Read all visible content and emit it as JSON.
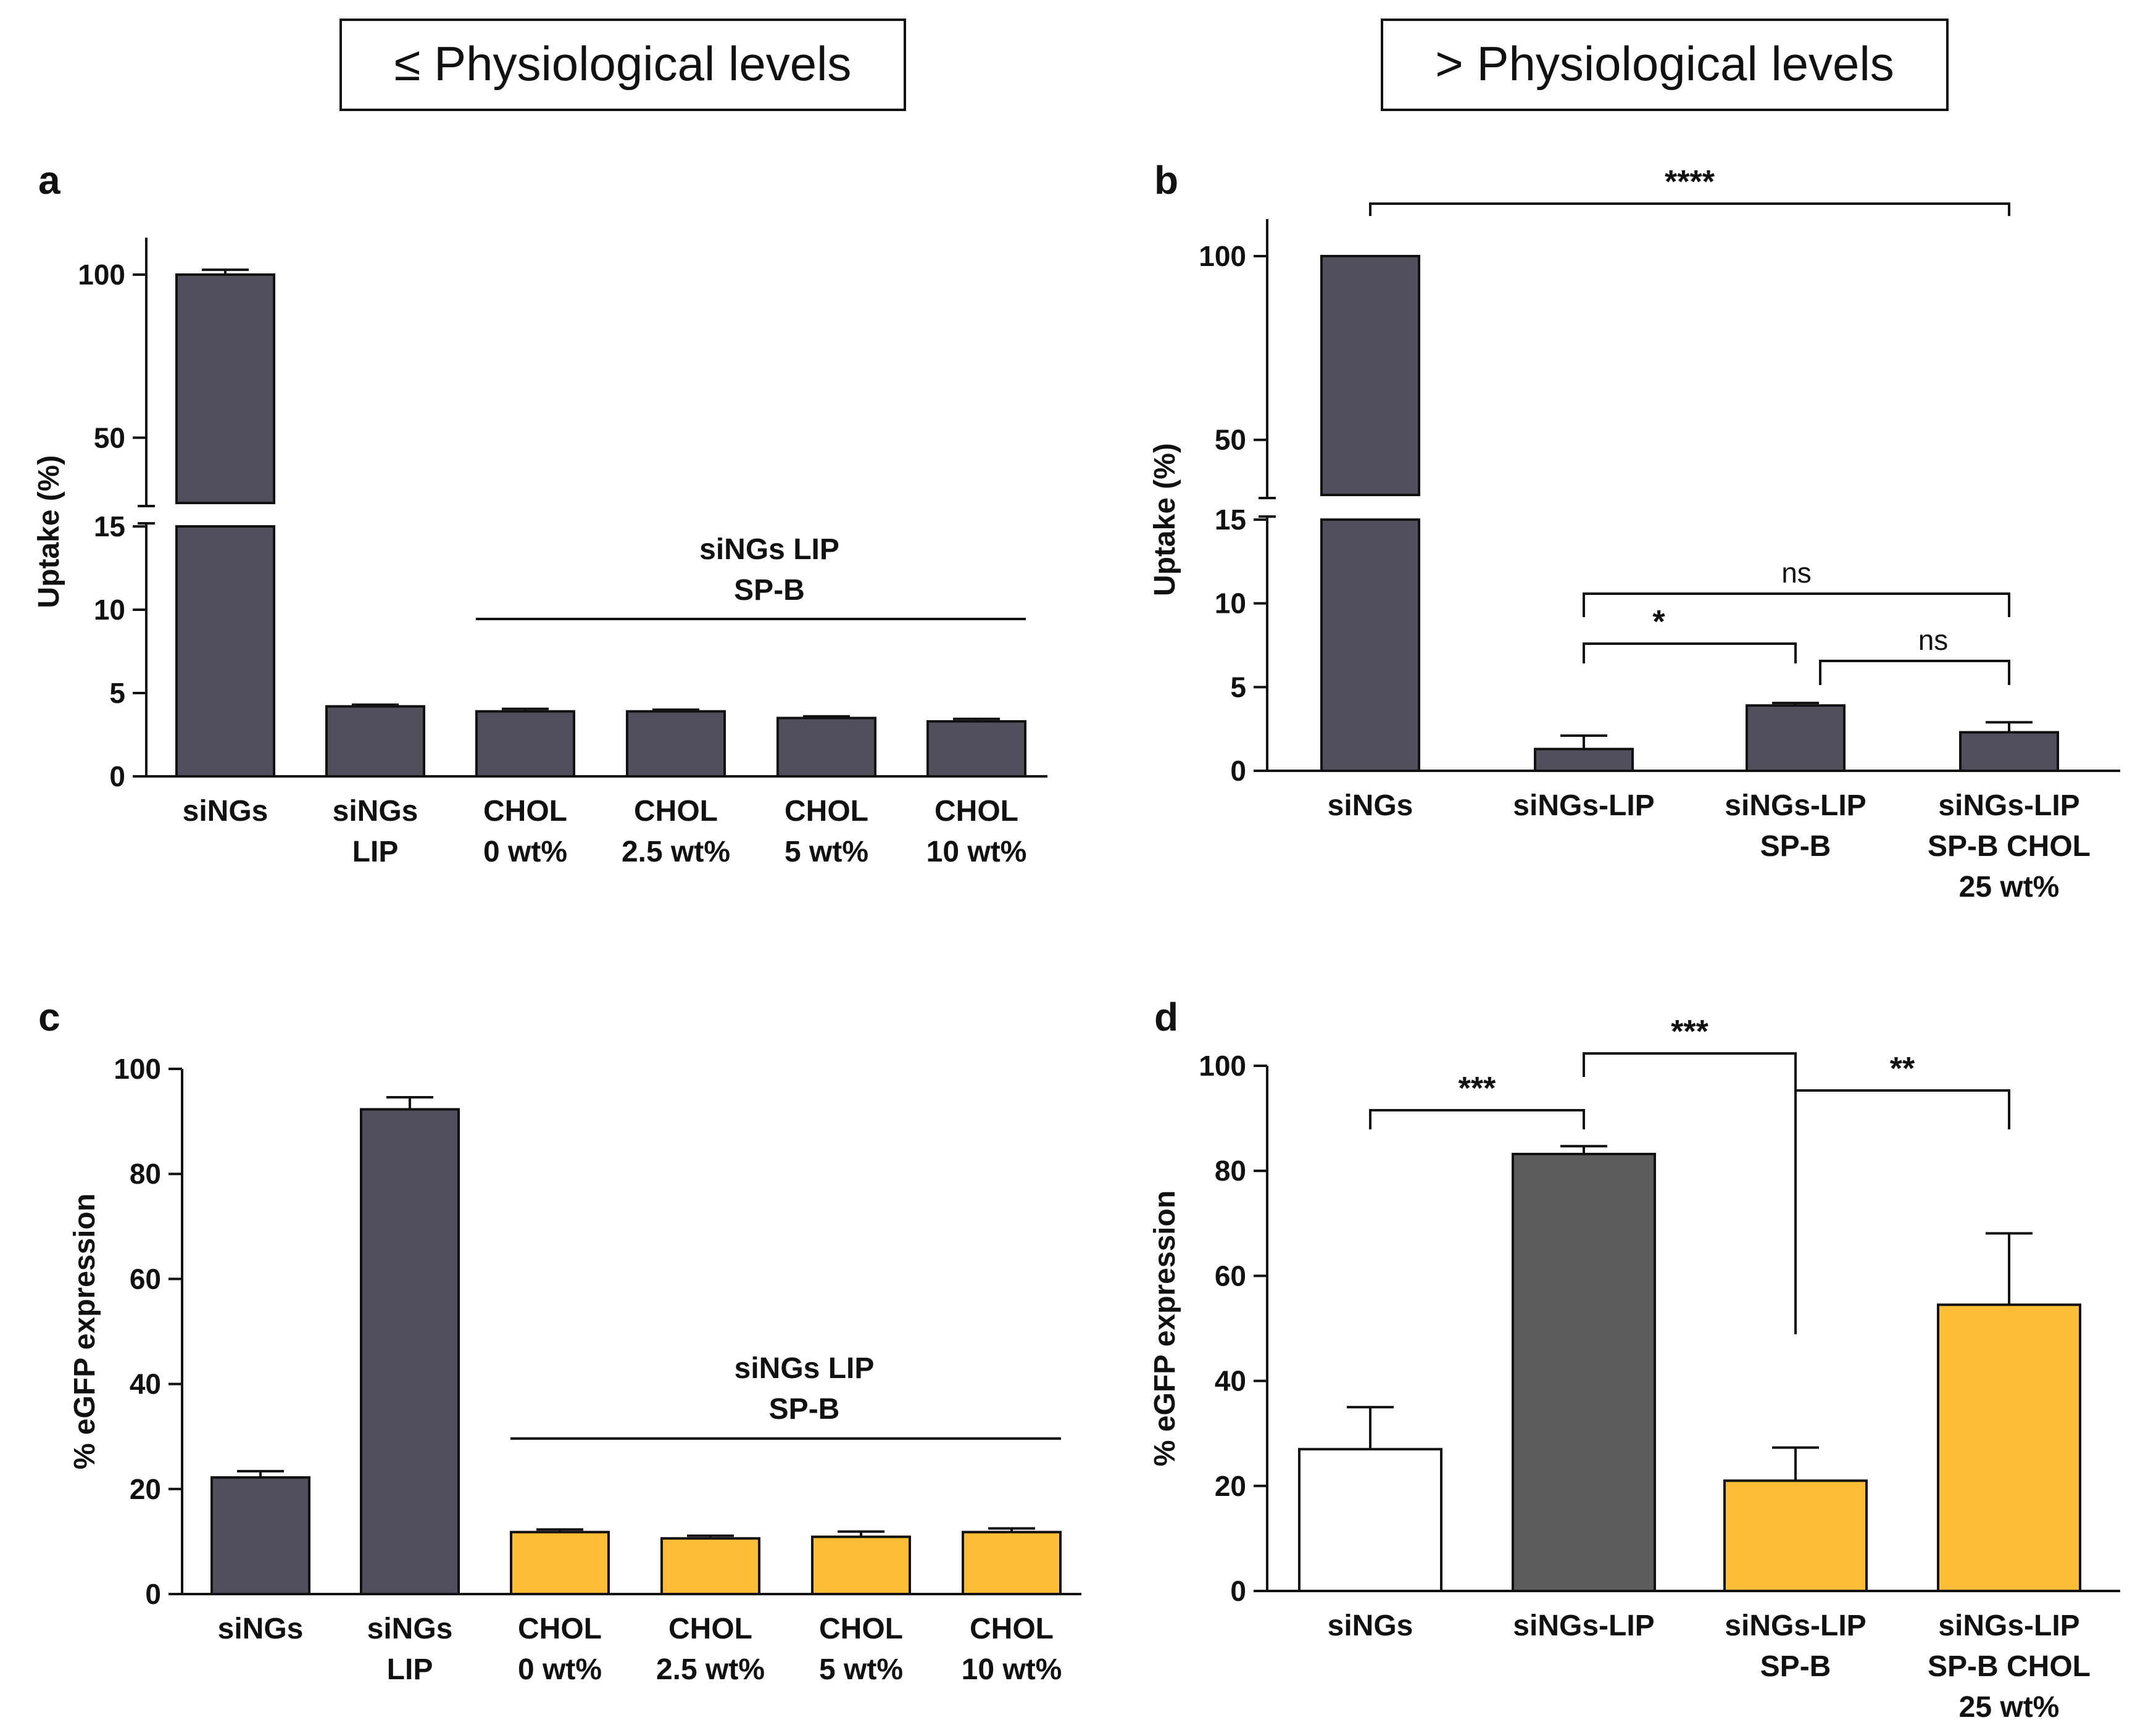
{
  "headers": {
    "left": "≤ Physiological levels",
    "right": "> Physiological levels"
  },
  "colors": {
    "dark": "#50505c",
    "darkgrey": "#5c5c5c",
    "yellow": "#fbbd35",
    "white": "#ffffff",
    "line": "#111111"
  },
  "chart_data": [
    {
      "panel": "a",
      "type": "bar",
      "ylabel": "Uptake (%)",
      "axis_break": [
        15,
        30
      ],
      "yticks_lower": [
        "0",
        "5",
        "10",
        "15"
      ],
      "yticks_upper": [
        "50",
        "100"
      ],
      "categories": [
        [
          "siNGs"
        ],
        [
          "siNGs",
          "LIP"
        ],
        [
          "CHOL",
          "0 wt%"
        ],
        [
          "CHOL",
          "2.5 wt%"
        ],
        [
          "CHOL",
          "5 wt%"
        ],
        [
          "CHOL",
          "10 wt%"
        ]
      ],
      "values": [
        100,
        4.2,
        3.9,
        3.9,
        3.5,
        3.3
      ],
      "errors": [
        1.5,
        0.1,
        0.15,
        0.1,
        0.1,
        0.15
      ],
      "bar_colors": [
        "dark",
        "dark",
        "dark",
        "dark",
        "dark",
        "dark"
      ],
      "group_label": [
        "siNGs LIP",
        "SP-B"
      ],
      "group_span": [
        2,
        5
      ]
    },
    {
      "panel": "b",
      "type": "bar",
      "ylabel": "Uptake (%)",
      "axis_break": [
        15,
        35
      ],
      "yticks_lower": [
        "0",
        "5",
        "10",
        "15"
      ],
      "yticks_upper": [
        "50",
        "100"
      ],
      "categories": [
        [
          "siNGs"
        ],
        [
          "siNGs-LIP"
        ],
        [
          "siNGs-LIP",
          "SP-B"
        ],
        [
          "siNGs-LIP",
          "SP-B CHOL",
          "25 wt%"
        ]
      ],
      "values": [
        100,
        1.3,
        3.9,
        2.3
      ],
      "errors": [
        0,
        0.8,
        0.15,
        0.6
      ],
      "bar_colors": [
        "dark",
        "dark",
        "dark",
        "dark"
      ],
      "significance": [
        {
          "from": 0,
          "to": 3,
          "label": "****"
        },
        {
          "from": 1,
          "to": 3,
          "label": "ns"
        },
        {
          "from": 1,
          "to": 2,
          "label": "*"
        },
        {
          "from": 2,
          "to": 3,
          "label": "ns"
        }
      ]
    },
    {
      "panel": "c",
      "type": "bar",
      "ylabel": "% eGFP expression",
      "ylim": [
        0,
        100
      ],
      "yticks": [
        "0",
        "20",
        "40",
        "60",
        "80",
        "100"
      ],
      "categories": [
        [
          "siNGs"
        ],
        [
          "siNGs",
          "LIP"
        ],
        [
          "CHOL",
          "0 wt%"
        ],
        [
          "CHOL",
          "2.5 wt%"
        ],
        [
          "CHOL",
          "5 wt%"
        ],
        [
          "CHOL",
          "10 wt%"
        ]
      ],
      "values": [
        22.2,
        92.3,
        11.8,
        10.6,
        10.9,
        11.8
      ],
      "errors": [
        1.2,
        2.3,
        0.5,
        0.5,
        1.0,
        0.7
      ],
      "bar_colors": [
        "dark",
        "dark",
        "yellow",
        "yellow",
        "yellow",
        "yellow"
      ],
      "group_label": [
        "siNGs LIP",
        "SP-B"
      ],
      "group_span": [
        2,
        5
      ]
    },
    {
      "panel": "d",
      "type": "bar",
      "ylabel": "% eGFP expression",
      "ylim": [
        0,
        100
      ],
      "yticks": [
        "0",
        "20",
        "40",
        "60",
        "80",
        "100"
      ],
      "categories": [
        [
          "siNGs"
        ],
        [
          "siNGs-LIP"
        ],
        [
          "siNGs-LIP",
          "SP-B"
        ],
        [
          "siNGs-LIP",
          "SP-B CHOL",
          "25 wt%"
        ]
      ],
      "values": [
        27.0,
        83.2,
        21.0,
        54.5
      ],
      "errors": [
        8.0,
        1.5,
        6.3,
        13.6
      ],
      "bar_colors": [
        "white",
        "darkgrey",
        "yellow",
        "yellow"
      ],
      "significance": [
        {
          "from": 0,
          "to": 1,
          "label": "***"
        },
        {
          "from": 1,
          "to": 2,
          "label": "***"
        },
        {
          "from": 2,
          "to": 3,
          "label": "**"
        }
      ]
    }
  ]
}
